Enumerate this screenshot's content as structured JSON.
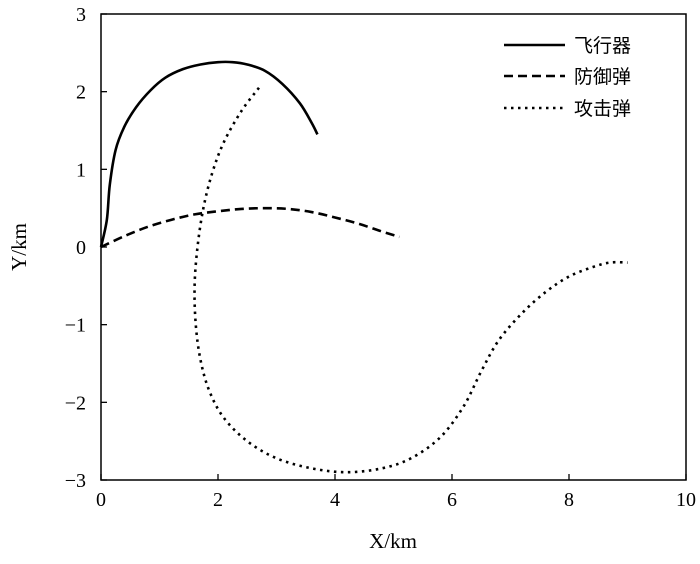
{
  "chart_data": {
    "type": "line",
    "xlabel": "X/km",
    "ylabel": "Y/km",
    "xlim": [
      0,
      10
    ],
    "ylim": [
      -3,
      3
    ],
    "xticks": [
      "0",
      "2",
      "4",
      "6",
      "8",
      "10"
    ],
    "yticks": [
      "−3",
      "−2",
      "−1",
      "0",
      "1",
      "2",
      "3"
    ],
    "grid": false,
    "legend_position": "top-right",
    "series": [
      {
        "name": "飞行器",
        "style": "solid",
        "color": "#000000",
        "x": [
          0,
          0.1,
          0.15,
          0.25,
          0.4,
          0.6,
          0.85,
          1.1,
          1.4,
          1.7,
          2.0,
          2.25,
          2.5,
          2.8,
          3.1,
          3.4,
          3.6,
          3.7
        ],
        "y": [
          0,
          0.35,
          0.8,
          1.25,
          1.55,
          1.8,
          2.02,
          2.18,
          2.29,
          2.35,
          2.38,
          2.38,
          2.35,
          2.27,
          2.1,
          1.85,
          1.6,
          1.45
        ]
      },
      {
        "name": "防御弹",
        "style": "dashed",
        "color": "#000000",
        "x": [
          0,
          0.4,
          0.8,
          1.2,
          1.6,
          2.0,
          2.4,
          2.8,
          3.2,
          3.6,
          4.0,
          4.4,
          4.8,
          5.1
        ],
        "y": [
          0,
          0.14,
          0.26,
          0.35,
          0.42,
          0.46,
          0.49,
          0.5,
          0.49,
          0.45,
          0.38,
          0.3,
          0.2,
          0.13
        ]
      },
      {
        "name": "攻击弹",
        "style": "dotted",
        "color": "#000000",
        "x": [
          2.7,
          2.4,
          2.1,
          1.9,
          1.75,
          1.65,
          1.6,
          1.62,
          1.7,
          1.85,
          2.1,
          2.5,
          3.0,
          3.6,
          4.2,
          4.8,
          5.3,
          5.8,
          6.2,
          6.5,
          6.8,
          7.2,
          7.6,
          8.0,
          8.4,
          8.7,
          9.0
        ],
        "y": [
          2.05,
          1.75,
          1.35,
          0.95,
          0.5,
          0.0,
          -0.5,
          -1.0,
          -1.45,
          -1.85,
          -2.2,
          -2.5,
          -2.72,
          -2.85,
          -2.9,
          -2.85,
          -2.72,
          -2.45,
          -2.05,
          -1.6,
          -1.2,
          -0.85,
          -0.58,
          -0.38,
          -0.26,
          -0.2,
          -0.2
        ]
      }
    ]
  }
}
